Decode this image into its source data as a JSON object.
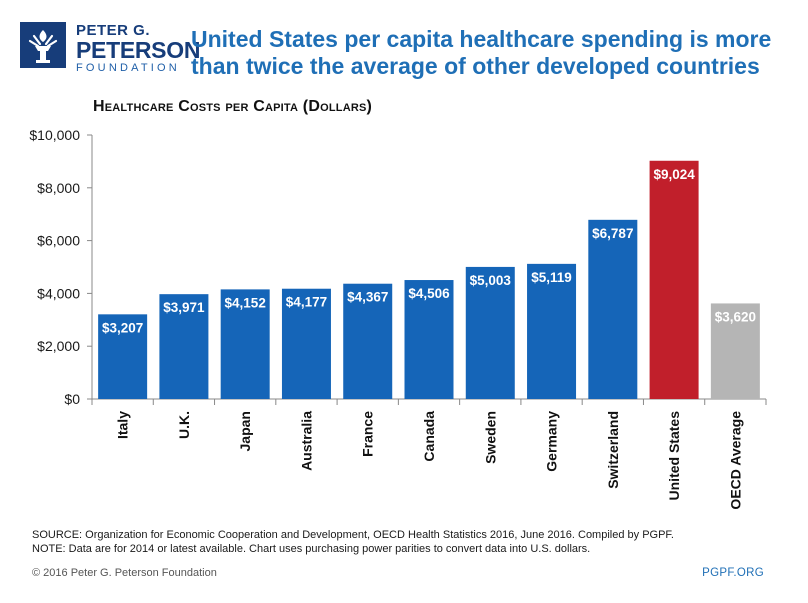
{
  "branding": {
    "org_line1": "PETER G.",
    "org_line2": "PETERSON",
    "org_line3": "FOUNDATION",
    "logo_icon": "torch-icon",
    "brand_color": "#173d7a"
  },
  "headline": "United States per capita healthcare spending is more than twice the average of other developed countries",
  "chart_data": {
    "type": "bar",
    "title": "Healthcare Costs per Capita (Dollars)",
    "xlabel": "",
    "ylabel": "",
    "ylim": [
      0,
      10000
    ],
    "yticks": [
      0,
      2000,
      4000,
      6000,
      8000,
      10000
    ],
    "ytick_labels": [
      "$0",
      "$2,000",
      "$4,000",
      "$6,000",
      "$8,000",
      "$10,000"
    ],
    "grid": false,
    "categories": [
      "Italy",
      "U.K.",
      "Japan",
      "Australia",
      "France",
      "Canada",
      "Sweden",
      "Germany",
      "Switzerland",
      "United States",
      "OECD Average"
    ],
    "values": [
      3207,
      3971,
      4152,
      4177,
      4367,
      4506,
      5003,
      5119,
      6787,
      9024,
      3620
    ],
    "value_labels": [
      "$3,207",
      "$3,971",
      "$4,152",
      "$4,177",
      "$4,367",
      "$4,506",
      "$5,003",
      "$5,119",
      "$6,787",
      "$9,024",
      "$3,620"
    ],
    "bar_colors": [
      "#1565b8",
      "#1565b8",
      "#1565b8",
      "#1565b8",
      "#1565b8",
      "#1565b8",
      "#1565b8",
      "#1565b8",
      "#1565b8",
      "#c11f2b",
      "#b5b5b5"
    ]
  },
  "footnotes": {
    "source": "SOURCE: Organization for Economic Cooperation and Development, OECD Health Statistics 2016, June 2016. Compiled by PGPF.",
    "note": "NOTE: Data are for 2014 or latest available. Chart uses purchasing power parities to convert data into U.S. dollars."
  },
  "footer": {
    "copyright": "© 2016 Peter G. Peterson Foundation",
    "site": "PGPF.ORG"
  }
}
